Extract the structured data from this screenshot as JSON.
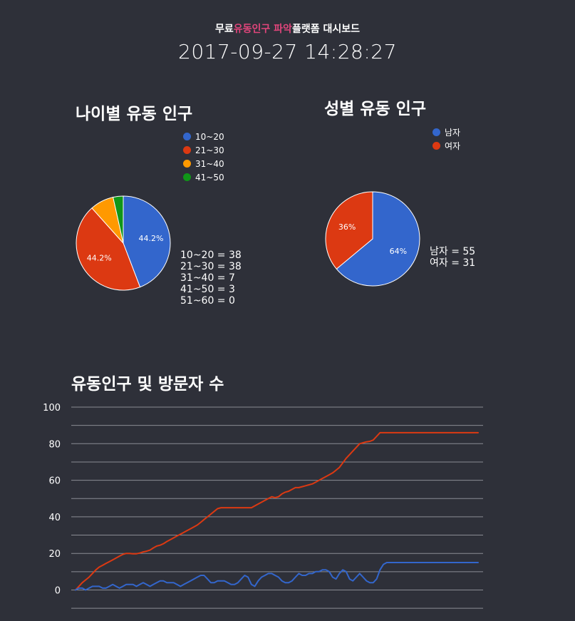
{
  "header": {
    "title_part1": "무료",
    "title_highlight": "유동인구 파악",
    "title_part2": "플랫폼 대시보드",
    "datetime": "2017-09-27 14:28:27"
  },
  "colors": {
    "background": "#2e3039",
    "highlight": "#e0457b",
    "blue": "#3366cc",
    "red": "#dc3912",
    "orange": "#ff9900",
    "green": "#109618",
    "grid": "#8a8c94"
  },
  "age_section": {
    "title": "나이별 유동 인구",
    "legend": [
      {
        "label": "10~20",
        "color": "#3366cc"
      },
      {
        "label": "21~30",
        "color": "#dc3912"
      },
      {
        "label": "31~40",
        "color": "#ff9900"
      },
      {
        "label": "41~50",
        "color": "#109618"
      }
    ],
    "stats": [
      "10~20 = 38",
      "21~30 = 38",
      "31~40 = 7",
      "41~50 = 3",
      "51~60 = 0"
    ]
  },
  "gender_section": {
    "title": "성별 유동 인구",
    "legend": [
      {
        "label": "남자",
        "color": "#3366cc"
      },
      {
        "label": "여자",
        "color": "#dc3912"
      }
    ],
    "stats": [
      "남자 = 55",
      "여자 = 31"
    ]
  },
  "visitor_section": {
    "title": "유동인구 및 방문자 수"
  },
  "chart_data": [
    {
      "type": "pie",
      "labels": [
        "10~20",
        "21~30",
        "31~40",
        "41~50",
        "51~60"
      ],
      "values": [
        38,
        38,
        7,
        3,
        0
      ],
      "slice_labels": [
        "44.2%",
        "44.2%",
        "",
        "",
        ""
      ],
      "colors": [
        "#3366cc",
        "#dc3912",
        "#ff9900",
        "#109618",
        "#990099"
      ]
    },
    {
      "type": "pie",
      "labels": [
        "남자",
        "여자"
      ],
      "values": [
        55,
        31
      ],
      "slice_labels": [
        "64%",
        "36%"
      ],
      "colors": [
        "#3366cc",
        "#dc3912"
      ]
    },
    {
      "type": "line",
      "ylim": [
        -10,
        100
      ],
      "yticks": [
        100,
        80,
        60,
        40,
        20,
        0
      ],
      "grid": true,
      "x": [
        0,
        1,
        2,
        3,
        4,
        5,
        6,
        7,
        8,
        9,
        10,
        11,
        12,
        13,
        14,
        15,
        16,
        17,
        18,
        19,
        20,
        21,
        22,
        23,
        24,
        25,
        26,
        27,
        28,
        29,
        30,
        31,
        32,
        33,
        34,
        35,
        36,
        37,
        38,
        39,
        40,
        41,
        42,
        43,
        44,
        45,
        46,
        47,
        48,
        49,
        50,
        51,
        52,
        53,
        54,
        55,
        56,
        57,
        58,
        59,
        60,
        61,
        62,
        63,
        64,
        65,
        66,
        67,
        68,
        69,
        70,
        71,
        72,
        73,
        74,
        75,
        76,
        77,
        78,
        79,
        80,
        81,
        82,
        83,
        84,
        85,
        86,
        87,
        88,
        89,
        90,
        91,
        92,
        93,
        94,
        95,
        96,
        97,
        98,
        99,
        100,
        101,
        102,
        103,
        104,
        105,
        106,
        107,
        108,
        109,
        110,
        111,
        112,
        113,
        114,
        115,
        116,
        117,
        118,
        119
      ],
      "series": [
        {
          "color": "#dc3912",
          "values": [
            0,
            2,
            4,
            5.5,
            7,
            9,
            11,
            12.5,
            13.5,
            14.5,
            15.5,
            16.5,
            17.5,
            18.5,
            19.5,
            20,
            20,
            19.8,
            19.8,
            20.2,
            20.8,
            21.2,
            21.8,
            23,
            24,
            24.5,
            25.3,
            26.5,
            27.5,
            28.5,
            29.5,
            30.5,
            31.5,
            32.5,
            33.5,
            34.5,
            35.5,
            37,
            38.5,
            40,
            41.5,
            43,
            44.5,
            45,
            45,
            45,
            45,
            45,
            45,
            45,
            45,
            45,
            45,
            46,
            47,
            48,
            49,
            50,
            51,
            50.5,
            51,
            52.5,
            53.5,
            54,
            55,
            56,
            56,
            56.5,
            57,
            57.5,
            58,
            59,
            60,
            61,
            62,
            63,
            64,
            65.5,
            67,
            69.5,
            72,
            74,
            76,
            78,
            80,
            80.5,
            81,
            81.3,
            82,
            84,
            86,
            86,
            86,
            86,
            86,
            86,
            86,
            86,
            86,
            86,
            86,
            86,
            86,
            86,
            86,
            86,
            86,
            86,
            86,
            86,
            86,
            86,
            86,
            86,
            86,
            86,
            86,
            86,
            86,
            86
          ]
        },
        {
          "color": "#3366cc",
          "values": [
            0,
            1,
            1,
            0,
            1,
            2,
            2,
            2,
            1,
            1,
            2,
            3,
            2,
            1,
            2,
            3,
            3,
            3,
            2,
            3,
            4,
            3,
            2,
            3,
            4,
            5,
            5,
            4,
            4,
            4,
            3,
            2,
            3,
            4,
            5,
            6,
            7,
            8,
            8,
            6,
            4,
            4,
            5,
            5,
            5,
            4,
            3,
            3,
            4,
            6,
            8,
            7,
            3,
            2,
            5,
            7,
            8,
            9,
            9,
            8,
            7,
            5,
            4,
            4,
            5,
            7,
            9,
            8,
            8,
            9,
            9,
            10,
            10,
            11,
            11,
            10,
            7,
            6,
            9,
            11,
            10,
            6,
            5,
            7,
            9,
            7,
            5,
            4,
            4,
            6,
            11,
            14,
            15,
            15,
            15,
            15,
            15,
            15,
            15,
            15,
            15,
            15,
            15,
            15,
            15,
            15,
            15,
            15,
            15,
            15,
            15,
            15,
            15,
            15,
            15,
            15,
            15,
            15,
            15,
            15
          ]
        }
      ]
    }
  ]
}
